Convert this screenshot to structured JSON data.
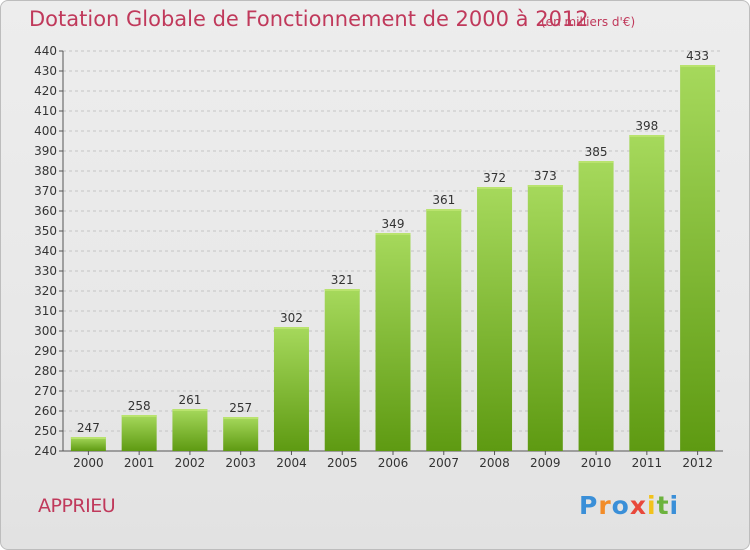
{
  "header": {
    "title": "Dotation Globale de Fonctionnement de 2000 à 2012",
    "unit_note": "(en milliers d'€)"
  },
  "footer": {
    "place": "APPRIEU",
    "logo_text": "Proxiti",
    "logo_colors": [
      "#3a8fd8",
      "#f28c28",
      "#3a8fd8",
      "#e8483b",
      "#f2c21b",
      "#6cb33e",
      "#3a8fd8"
    ]
  },
  "colors": {
    "title": "#c0395b",
    "bar_light": "#a3d65a",
    "bar_dark": "#5e9a12",
    "grid": "#bfbfbf"
  },
  "chart_data": {
    "type": "bar",
    "title": "Dotation Globale de Fonctionnement de 2000 à 2012",
    "subtitle": "(en milliers d'€)",
    "xlabel": "",
    "ylabel": "",
    "categories": [
      "2000",
      "2001",
      "2002",
      "2003",
      "2004",
      "2005",
      "2006",
      "2007",
      "2008",
      "2009",
      "2010",
      "2011",
      "2012"
    ],
    "values": [
      247,
      258,
      261,
      257,
      302,
      321,
      349,
      361,
      372,
      373,
      385,
      398,
      433
    ],
    "ylim": [
      240,
      440
    ],
    "ytick_step": 10,
    "grid": "horizontal dashed",
    "legend": "none",
    "data_labels": true
  }
}
